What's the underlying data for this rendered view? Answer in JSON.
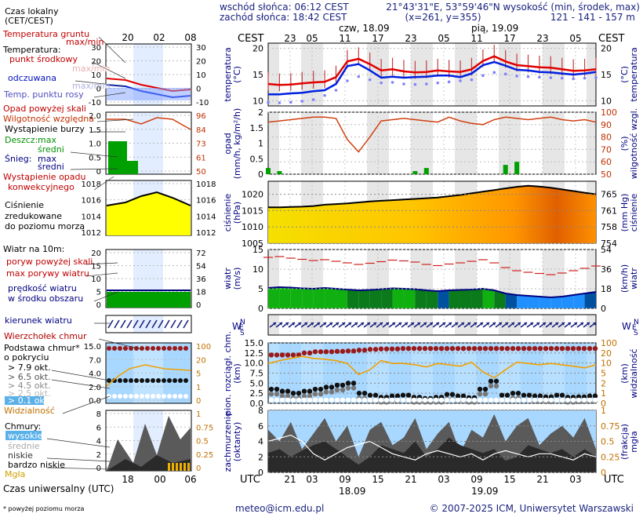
{
  "header": {
    "sunrise": "wschód słońca: 06:12 CEST",
    "sunset": "zachód słońca: 18:42 CEST",
    "coords": "21°43'31\"E, 53°59'46\"N",
    "grid": "(x=261,  y=355)",
    "elevation_title": "wysokość (min, środek, max)",
    "elevation_values": "121 - 141 - 157 m"
  },
  "days": {
    "day1": "czw, 18.09",
    "day2": "pią, 19.09",
    "bottom1": "18.09",
    "bottom2": "19.09"
  },
  "cest_label": "CEST",
  "utc_label": "UTC",
  "legend": {
    "time_title1": "Czas lokalny",
    "time_title2": "(CET/CEST)",
    "top_ticks": [
      "20",
      "02",
      "08"
    ],
    "soil_temp": "Temperatura gruntu",
    "temp_maxmin": "max/min",
    "temperature": "Temperatura:",
    "temp_mid": "punkt środkowy",
    "temp_maxmin2": "max/min",
    "felt": "odczuwana",
    "felt_maxmin": "max/min",
    "dew": "Temp. punktu rosy",
    "precip_above": "Opad powyżej skali",
    "humidity": "Wilgotność względna",
    "storm": "Wystąpienie burzy",
    "rain": "Deszcz:",
    "rain_max": "max",
    "rain_mid": "średni",
    "snow": "Śnieg:",
    "snow_max": "max",
    "snow_mid": "średni",
    "conv1": "Wystąpienie opadu",
    "conv2": "konwekcyjnego",
    "press1": "Ciśnienie",
    "press2": "zredukowane",
    "press3": "do poziomu morza",
    "wind_title": "Wiatr na 10m:",
    "gust_above": "poryw powyżej skali",
    "gust_max": "max porywy wiatru",
    "wind_speed1": "prędkość wiatru",
    "wind_speed2": "w środku obszaru",
    "wind_dir": "kierunek wiatru",
    "cloud_top": "Wierzchołek chmur",
    "cloud_base1": "Podstawa chmur*",
    "cloud_base2": "o pokryciu",
    "okt79": "> 7.9 okt.",
    "okt65": "> 6.5 okt.",
    "okt45": "> 4.5 okt.",
    "okt25": "> 2.5 okt.",
    "okt01": "> 0.1 okt.",
    "visibility": "Widzialność",
    "clouds": "Chmury:",
    "high": "wysokie",
    "mid": "średnie",
    "low": "niskie",
    "very_low": "bardzo niskie",
    "fog": "Mgła",
    "utc_title": "Czas uniwersalny (UTC)",
    "bottom_ticks": [
      "18",
      "00",
      "06"
    ],
    "footnote": "* powyżej poziomu morza"
  },
  "footer": {
    "email": "meteo@icm.edu.pl",
    "copyright": "© 2007-2025 ICM, Uniwersytet Warszawski"
  },
  "axis_titles": {
    "temp_left": "temperatura",
    "temp_left_unit": "(°C)",
    "temp_right": "temperatura",
    "temp_right_unit": "(°C)",
    "precip_left": "opad",
    "precip_left_unit": "(mm/h, kg/m²/h)",
    "precip_right": "wilgotność wzgl.",
    "precip_right_unit": "(%)",
    "press_left": "ciśnienie",
    "press_left_unit": "(hPa)",
    "press_right": "ciśnienie",
    "press_right_unit": "(mm Hg)",
    "wind_left": "wiatr",
    "wind_left_unit": "(m/s)",
    "wind_right": "wiatr",
    "wind_right_unit": "(km/h)",
    "cloud_left": "pion. rozciągł. chm.",
    "cloud_left_unit": "(km)",
    "cloud_right": "widzialność",
    "cloud_right_unit": "(km)",
    "cover_left": "zachmurzenie",
    "cover_left_unit": "(oktanty)",
    "cover_right": "mgła",
    "cover_right_unit": "(frakcja)",
    "compass": "N W E S"
  },
  "colors": {
    "temp": "#e00000",
    "felt": "#0020e0",
    "dew": "#8080ff",
    "humidity": "#d04010",
    "rain": "#00a000",
    "pressure_low": "#ffff00",
    "pressure_high": "#e06000",
    "wind": "#00a000",
    "gust": "#d02020",
    "visibility": "#f0a000",
    "cloud_dark": "#303030",
    "sky": "#a8d8ff"
  },
  "chart_data": [
    {
      "type": "line",
      "title": "temperatura",
      "x_ticks_top": [
        "23",
        "05",
        "11",
        "17",
        "23",
        "05",
        "11",
        "17",
        "23",
        "05"
      ],
      "x_ticks_bottom": [
        "21",
        "03",
        "09",
        "15",
        "21",
        "03",
        "09",
        "15",
        "21",
        "03"
      ],
      "y_ticks": [
        10,
        15,
        20
      ],
      "ylim": [
        9,
        21
      ],
      "series": [
        {
          "name": "Temperatura",
          "values": [
            13.2,
            13.0,
            13.1,
            13.3,
            13.5,
            13.6,
            14.5,
            17.5,
            18.0,
            17.0,
            15.8,
            16.0,
            15.6,
            15.4,
            15.5,
            15.8,
            15.6,
            15.5,
            16.0,
            17.6,
            18.5,
            17.5,
            16.8,
            16.6,
            16.4,
            16.3,
            16.0,
            15.7,
            15.8,
            16.0
          ]
        },
        {
          "name": "odczuwana",
          "values": [
            11.2,
            11.2,
            11.4,
            11.5,
            11.8,
            12.0,
            13.2,
            16.6,
            17.0,
            15.8,
            14.4,
            14.6,
            14.4,
            14.5,
            14.6,
            14.8,
            14.8,
            14.5,
            15.2,
            16.8,
            17.4,
            16.7,
            15.9,
            15.8,
            15.5,
            15.4,
            15.2,
            15.0,
            15.2,
            15.5
          ]
        },
        {
          "name": "Temp. punktu rosy",
          "values": [
            10.5,
            10.4,
            10.5,
            10.7,
            11.0,
            11.8,
            12.8,
            14.6,
            15.4,
            14.8,
            14.2,
            14.3,
            14.0,
            13.9,
            14.0,
            14.2,
            14.4,
            14.6,
            14.8,
            15.6,
            16.2,
            15.9,
            15.5,
            15.4,
            15.3,
            15.2,
            15.1,
            15.0,
            15.1,
            15.2
          ]
        }
      ]
    },
    {
      "type": "bar",
      "title": "opad",
      "y_ticks": [
        0,
        0.5,
        1.0,
        1.5,
        2.0
      ],
      "y2_ticks": [
        50,
        60,
        70,
        80,
        90,
        100
      ],
      "ylim": [
        0,
        2.0
      ],
      "series": [
        {
          "name": "Deszcz",
          "values": [
            0.2,
            0.1,
            0.0,
            0.0,
            0.0,
            0.0,
            0.0,
            0.0,
            0.0,
            0.0,
            0.0,
            0.0,
            0.0,
            0.1,
            0.2,
            0.0,
            0.0,
            0.0,
            0.0,
            0.0,
            0.0,
            0.3,
            0.4,
            0.0,
            0.0,
            0.0,
            0.0,
            0.0,
            0.0,
            0.0
          ]
        },
        {
          "name": "Wilgotność względna",
          "values": [
            92,
            93,
            94,
            95,
            96,
            96,
            95,
            78,
            68,
            80,
            93,
            94,
            95,
            94,
            93,
            92,
            96,
            93,
            91,
            90,
            94,
            96,
            95,
            94,
            95,
            96,
            94,
            93,
            94,
            92
          ]
        }
      ]
    },
    {
      "type": "area",
      "title": "ciśnienie",
      "y_ticks": [
        1005,
        1010,
        1015,
        1020
      ],
      "y2_ticks": [
        754,
        758,
        761,
        765
      ],
      "ylim": [
        1005,
        1024
      ],
      "series": [
        {
          "name": "Ciśnienie",
          "values": [
            1016.0,
            1016.0,
            1016.1,
            1016.2,
            1016.4,
            1016.8,
            1017.0,
            1017.2,
            1017.5,
            1017.8,
            1018.0,
            1018.2,
            1018.4,
            1018.6,
            1018.8,
            1019.0,
            1019.4,
            1019.8,
            1020.3,
            1020.8,
            1021.3,
            1021.8,
            1022.3,
            1022.6,
            1022.4,
            1022.0,
            1021.5,
            1021.0,
            1020.5,
            1020.0
          ]
        }
      ]
    },
    {
      "type": "area",
      "title": "wiatr",
      "y_ticks": [
        0,
        5,
        10,
        15
      ],
      "y2_ticks": [
        0,
        18,
        36,
        54
      ],
      "ylim": [
        0,
        15
      ],
      "series": [
        {
          "name": "prędkość wiatru",
          "values": [
            5.2,
            5.4,
            5.3,
            5.1,
            5.0,
            5.2,
            5.0,
            4.8,
            4.6,
            4.7,
            4.9,
            5.1,
            5.0,
            4.9,
            4.6,
            4.4,
            4.6,
            4.7,
            4.8,
            5.0,
            4.6,
            3.8,
            3.4,
            3.2,
            3.0,
            2.8,
            3.0,
            3.4,
            3.8,
            4.2
          ]
        },
        {
          "name": "max porywy wiatru",
          "values": [
            13.0,
            13.2,
            12.8,
            12.5,
            12.2,
            12.4,
            12.0,
            11.6,
            11.2,
            11.5,
            11.9,
            12.3,
            12.1,
            11.8,
            11.2,
            10.9,
            11.3,
            11.6,
            12.0,
            12.4,
            11.6,
            10.4,
            9.6,
            9.2,
            8.9,
            8.6,
            9.0,
            9.6,
            10.2,
            10.8
          ]
        }
      ]
    },
    {
      "type": "scatter",
      "title": "pion. rozciągł. chm.",
      "y_ticks": [
        0,
        2.5,
        5.0,
        7.5,
        10.0,
        12.5,
        15.0
      ],
      "y2_ticks": [
        0,
        1,
        2,
        5,
        10,
        20,
        100
      ],
      "ylim": [
        0,
        15
      ],
      "series": [
        {
          "name": "Wierzchołek chmur",
          "values": [
            12.0,
            12.0,
            12.0,
            12.5,
            12.8,
            12.8,
            12.9,
            13.0,
            13.2,
            13.4,
            13.5,
            13.5,
            13.6,
            13.6,
            13.6,
            13.6,
            13.6,
            13.6,
            13.6,
            13.6,
            13.6,
            13.6,
            13.6,
            13.6,
            13.6,
            13.6,
            13.6,
            13.6,
            13.6,
            13.6
          ]
        },
        {
          "name": "> 7.9 okt.",
          "values": [
            3.5,
            3.0,
            2.5,
            3.0,
            3.5,
            4.0,
            4.5,
            5.0,
            2.5,
            2.0,
            1.5,
            1.8,
            2.0,
            1.5,
            1.2,
            1.5,
            2.2,
            1.8,
            1.4,
            3.5,
            5.5,
            2.0,
            2.5,
            2.0,
            1.8,
            1.6,
            2.0,
            1.5,
            1.6,
            1.8
          ]
        },
        {
          "name": "Widzialność",
          "values": [
            20,
            25,
            30,
            35,
            30,
            28,
            25,
            20,
            8,
            12,
            25,
            20,
            20,
            18,
            15,
            20,
            18,
            16,
            22,
            10,
            6,
            12,
            22,
            20,
            18,
            20,
            18,
            16,
            14,
            18
          ]
        }
      ]
    },
    {
      "type": "area",
      "title": "zachmurzenie",
      "y_ticks": [
        0,
        2,
        4,
        6,
        8
      ],
      "y2_ticks": [
        0,
        0.25,
        0.5,
        0.75,
        1
      ],
      "ylim": [
        0,
        8
      ],
      "series": [
        {
          "name": "Chmury",
          "values": [
            5.5,
            4.0,
            6.5,
            3.0,
            5.0,
            7.0,
            4.0,
            6.0,
            2.0,
            5.5,
            6.5,
            3.5,
            4.5,
            7.0,
            3.0,
            5.0,
            6.5,
            2.5,
            5.5,
            4.5,
            7.5,
            4.0,
            6.0,
            7.0,
            3.5,
            5.0,
            6.0,
            4.5,
            7.0,
            3.0
          ]
        },
        {
          "name": "niskie",
          "values": [
            2.5,
            3.0,
            2.0,
            2.8,
            3.5,
            4.0,
            3.0,
            2.0,
            1.0,
            2.0,
            3.5,
            3.0,
            2.5,
            4.0,
            2.0,
            3.0,
            4.5,
            3.5,
            3.0,
            2.5,
            3.0,
            1.5,
            2.0,
            3.5,
            3.0,
            2.5,
            3.0,
            2.0,
            3.0,
            2.0
          ]
        }
      ]
    }
  ]
}
